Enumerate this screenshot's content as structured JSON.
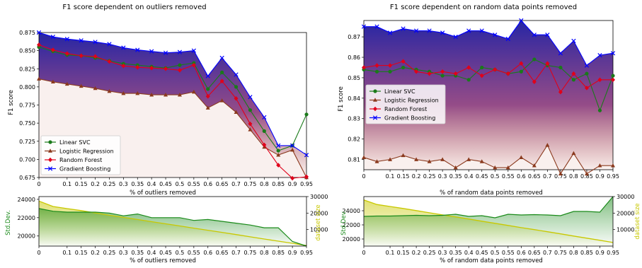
{
  "chart_data": [
    {
      "type": "line",
      "title": "F1 score dependent on outliers removed",
      "xlabel": "% of outliers removed",
      "ylabel": "F1 score",
      "x": [
        0,
        0.05,
        0.1,
        0.15,
        0.2,
        0.25,
        0.3,
        0.35,
        0.4,
        0.45,
        0.5,
        0.55,
        0.6,
        0.65,
        0.7,
        0.75,
        0.8,
        0.85,
        0.9,
        0.95
      ],
      "xticks": [
        "0",
        "0.1",
        "0.15",
        "0.2",
        "0.25",
        "0.3",
        "0.35",
        "0.4",
        "0.45",
        "0.5",
        "0.55",
        "0.6",
        "0.65",
        "0.7",
        "0.75",
        "0.8",
        "0.85",
        "0.9",
        "0.95"
      ],
      "xtick_values": [
        0,
        0.1,
        0.15,
        0.2,
        0.25,
        0.3,
        0.35,
        0.4,
        0.45,
        0.5,
        0.55,
        0.6,
        0.65,
        0.7,
        0.75,
        0.8,
        0.85,
        0.9,
        0.95
      ],
      "yticks": [
        "0.675",
        "0.700",
        "0.725",
        "0.750",
        "0.775",
        "0.800",
        "0.825",
        "0.850",
        "0.875"
      ],
      "ytick_values": [
        0.675,
        0.7,
        0.725,
        0.75,
        0.775,
        0.8,
        0.825,
        0.85,
        0.875
      ],
      "xlim": [
        0,
        0.95
      ],
      "ylim": [
        0.675,
        0.875
      ],
      "legend_position": "lower-left",
      "series": [
        {
          "name": "Linear SVC",
          "color": "#1a7a1a",
          "marker": "circle",
          "values": [
            0.855,
            0.849,
            0.844,
            0.843,
            0.84,
            0.836,
            0.832,
            0.83,
            0.828,
            0.826,
            0.83,
            0.833,
            0.797,
            0.82,
            0.8,
            0.768,
            0.739,
            0.712,
            0.719,
            0.762
          ]
        },
        {
          "name": "Logistic Regression",
          "color": "#8b3a1e",
          "marker": "triangle",
          "values": [
            0.811,
            0.807,
            0.804,
            0.801,
            0.798,
            0.794,
            0.791,
            0.791,
            0.789,
            0.789,
            0.789,
            0.793,
            0.771,
            0.781,
            0.765,
            0.741,
            0.717,
            0.706,
            0.713,
            0.675
          ]
        },
        {
          "name": "Random Forest",
          "color": "#e0001a",
          "marker": "diamond",
          "values": [
            0.858,
            0.851,
            0.846,
            0.843,
            0.842,
            0.835,
            0.829,
            0.827,
            0.826,
            0.825,
            0.823,
            0.83,
            0.787,
            0.808,
            0.784,
            0.749,
            0.72,
            0.692,
            0.674,
            0.676
          ]
        },
        {
          "name": "Gradient Boosting",
          "color": "#0000ff",
          "marker": "x",
          "values": [
            0.875,
            0.869,
            0.866,
            0.864,
            0.862,
            0.859,
            0.854,
            0.851,
            0.849,
            0.847,
            0.848,
            0.85,
            0.815,
            0.84,
            0.817,
            0.786,
            0.758,
            0.719,
            0.719,
            0.706
          ]
        }
      ]
    },
    {
      "type": "line",
      "title": "F1 score dependent on random data points removed",
      "xlabel": "% of random data points removed",
      "ylabel": "F1 score",
      "x": [
        0,
        0.05,
        0.1,
        0.15,
        0.2,
        0.25,
        0.3,
        0.35,
        0.4,
        0.45,
        0.5,
        0.55,
        0.6,
        0.65,
        0.7,
        0.75,
        0.8,
        0.85,
        0.9,
        0.95
      ],
      "xticks": [
        "0",
        "0.1",
        "0.15",
        "0.2",
        "0.25",
        "0.3",
        "0.35",
        "0.4",
        "0.45",
        "0.5",
        "0.55",
        "0.6",
        "0.65",
        "0.7",
        "0.75",
        "0.8",
        "0.85",
        "0.9",
        "0.95"
      ],
      "xtick_values": [
        0,
        0.1,
        0.15,
        0.2,
        0.25,
        0.3,
        0.35,
        0.4,
        0.45,
        0.5,
        0.55,
        0.6,
        0.65,
        0.7,
        0.75,
        0.8,
        0.85,
        0.9,
        0.95
      ],
      "yticks": [
        "0.81",
        "0.82",
        "0.83",
        "0.84",
        "0.85",
        "0.86",
        "0.87"
      ],
      "ytick_values": [
        0.81,
        0.82,
        0.83,
        0.84,
        0.85,
        0.86,
        0.87
      ],
      "xlim": [
        0,
        0.95
      ],
      "ylim": [
        0.805,
        0.878
      ],
      "legend_position": "center-left",
      "series": [
        {
          "name": "Linear SVC",
          "color": "#1a7a1a",
          "marker": "circle",
          "values": [
            0.854,
            0.853,
            0.853,
            0.855,
            0.854,
            0.853,
            0.851,
            0.851,
            0.849,
            0.855,
            0.854,
            0.852,
            0.853,
            0.859,
            0.856,
            0.855,
            0.849,
            0.852,
            0.834,
            0.851
          ]
        },
        {
          "name": "Logistic Regression",
          "color": "#8b3a1e",
          "marker": "triangle",
          "values": [
            0.811,
            0.809,
            0.81,
            0.812,
            0.81,
            0.809,
            0.81,
            0.806,
            0.81,
            0.809,
            0.806,
            0.806,
            0.811,
            0.807,
            0.817,
            0.803,
            0.813,
            0.803,
            0.807,
            0.807
          ]
        },
        {
          "name": "Random Forest",
          "color": "#e0001a",
          "marker": "diamond",
          "values": [
            0.855,
            0.856,
            0.856,
            0.858,
            0.853,
            0.852,
            0.853,
            0.852,
            0.855,
            0.851,
            0.854,
            0.852,
            0.857,
            0.848,
            0.857,
            0.843,
            0.852,
            0.845,
            0.849,
            0.849
          ]
        },
        {
          "name": "Gradient Boosting",
          "color": "#0000ff",
          "marker": "x",
          "values": [
            0.875,
            0.875,
            0.872,
            0.874,
            0.873,
            0.873,
            0.872,
            0.87,
            0.873,
            0.873,
            0.871,
            0.869,
            0.878,
            0.871,
            0.871,
            0.862,
            0.868,
            0.856,
            0.861,
            0.862
          ]
        }
      ]
    },
    {
      "type": "area",
      "xlabel": "% of outliers removed",
      "ylabel": "Std.Dev.",
      "y2label": "dataset size",
      "x": [
        0,
        0.05,
        0.1,
        0.15,
        0.2,
        0.25,
        0.3,
        0.35,
        0.4,
        0.45,
        0.5,
        0.55,
        0.6,
        0.65,
        0.7,
        0.75,
        0.8,
        0.85,
        0.9,
        0.95
      ],
      "xticks": [
        "0",
        "0.1",
        "0.15",
        "0.2",
        "0.25",
        "0.3",
        "0.35",
        "0.4",
        "0.45",
        "0.5",
        "0.55",
        "0.6",
        "0.65",
        "0.7",
        "0.75",
        "0.8",
        "0.85",
        "0.9",
        "0.95"
      ],
      "xtick_values": [
        0,
        0.1,
        0.15,
        0.2,
        0.25,
        0.3,
        0.35,
        0.4,
        0.45,
        0.5,
        0.55,
        0.6,
        0.65,
        0.7,
        0.75,
        0.8,
        0.85,
        0.9,
        0.95
      ],
      "yticks": [
        "20000",
        "22000",
        "24000"
      ],
      "ytick_values": [
        20000,
        22000,
        24000
      ],
      "ylim": [
        18900,
        24300
      ],
      "y2ticks": [
        "10000",
        "20000",
        "30000"
      ],
      "y2tick_values": [
        10000,
        20000,
        30000
      ],
      "y2lim": [
        0,
        30000
      ],
      "std_color": "#1a8a1a",
      "size_color": "#c8c800",
      "std": [
        23000,
        22700,
        22600,
        22600,
        22600,
        22500,
        22200,
        22400,
        22000,
        22000,
        22000,
        21700,
        21800,
        21600,
        21400,
        21200,
        20900,
        20900,
        19400,
        18900
      ],
      "size": [
        27300,
        24000,
        22700,
        21500,
        20100,
        18700,
        17400,
        16100,
        14800,
        13500,
        12200,
        10900,
        9600,
        8300,
        7000,
        5600,
        4300,
        3000,
        1700,
        300
      ]
    },
    {
      "type": "area",
      "xlabel": "% of random data points removed",
      "ylabel": "Std.Dev.",
      "y2label": "dataset size",
      "x": [
        0,
        0.05,
        0.1,
        0.15,
        0.2,
        0.25,
        0.3,
        0.35,
        0.4,
        0.45,
        0.5,
        0.55,
        0.6,
        0.65,
        0.7,
        0.75,
        0.8,
        0.85,
        0.9,
        0.95
      ],
      "xticks": [
        "0",
        "0.1",
        "0.15",
        "0.2",
        "0.25",
        "0.3",
        "0.35",
        "0.4",
        "0.45",
        "0.5",
        "0.55",
        "0.6",
        "0.65",
        "0.7",
        "0.75",
        "0.8",
        "0.85",
        "0.9",
        "0.95"
      ],
      "xtick_values": [
        0,
        0.1,
        0.15,
        0.2,
        0.25,
        0.3,
        0.35,
        0.4,
        0.45,
        0.5,
        0.55,
        0.6,
        0.65,
        0.7,
        0.75,
        0.8,
        0.85,
        0.9,
        0.95
      ],
      "yticks": [
        "20000",
        "22000",
        "24000"
      ],
      "ytick_values": [
        20000,
        22000,
        24000
      ],
      "ylim": [
        19000,
        26000
      ],
      "y2ticks": [
        "10000",
        "20000",
        "30000"
      ],
      "y2tick_values": [
        10000,
        20000,
        30000
      ],
      "y2lim": [
        0,
        30000
      ],
      "std_color": "#1a8a1a",
      "size_color": "#c8c800",
      "std": [
        23200,
        23250,
        23250,
        23300,
        23350,
        23300,
        23350,
        23500,
        23200,
        23300,
        23000,
        23500,
        23400,
        23450,
        23400,
        23300,
        23900,
        23900,
        23800,
        26000
      ],
      "size": [
        28000,
        25200,
        24000,
        22800,
        21500,
        20200,
        18900,
        17700,
        16400,
        15100,
        13800,
        12500,
        11200,
        10000,
        8700,
        7400,
        6100,
        4800,
        3500,
        2200
      ]
    }
  ]
}
